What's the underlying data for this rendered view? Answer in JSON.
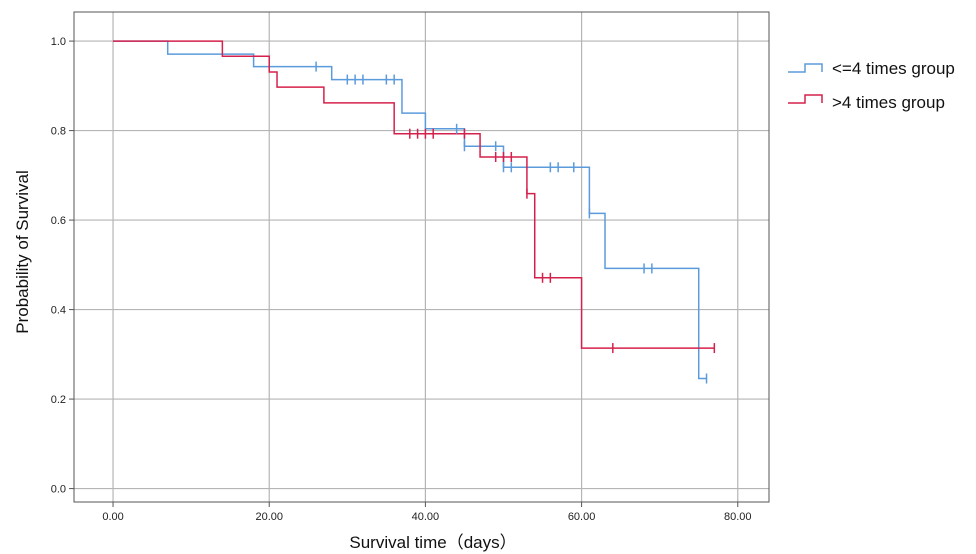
{
  "chart_data": {
    "type": "line",
    "title": "",
    "xlabel": "Survival time（days）",
    "ylabel": "Probability of Survival",
    "xlim": [
      -5,
      84
    ],
    "ylim": [
      -0.03,
      1.065
    ],
    "x_ticks": [
      0,
      20,
      40,
      60,
      80
    ],
    "x_tick_labels": [
      "0.00",
      "20.00",
      "40.00",
      "60.00",
      "80.00"
    ],
    "y_ticks": [
      0,
      0.2,
      0.4,
      0.6,
      0.8,
      1.0
    ],
    "y_tick_labels": [
      "0.0",
      "0.2",
      "0.4",
      "0.6",
      "0.8",
      "1.0"
    ],
    "grid": true,
    "legend_position": "right",
    "series": [
      {
        "name": "<=4 times group",
        "color": "#5b9bdc",
        "step_times": [
          0,
          7,
          18,
          28,
          37,
          40,
          45,
          50,
          61,
          63,
          75,
          76
        ],
        "survival": [
          1.0,
          0.971,
          0.943,
          0.914,
          0.839,
          0.804,
          0.765,
          0.718,
          0.615,
          0.492,
          0.246,
          0.246
        ],
        "censored": [
          {
            "x": 26,
            "y": 0.943
          },
          {
            "x": 30,
            "y": 0.914
          },
          {
            "x": 31,
            "y": 0.914
          },
          {
            "x": 32,
            "y": 0.914
          },
          {
            "x": 35,
            "y": 0.914
          },
          {
            "x": 36,
            "y": 0.914
          },
          {
            "x": 44,
            "y": 0.804
          },
          {
            "x": 45,
            "y": 0.765
          },
          {
            "x": 49,
            "y": 0.765
          },
          {
            "x": 50,
            "y": 0.718
          },
          {
            "x": 51,
            "y": 0.718
          },
          {
            "x": 56,
            "y": 0.718
          },
          {
            "x": 57,
            "y": 0.718
          },
          {
            "x": 59,
            "y": 0.718
          },
          {
            "x": 61,
            "y": 0.615
          },
          {
            "x": 68,
            "y": 0.492
          },
          {
            "x": 69,
            "y": 0.492
          },
          {
            "x": 76,
            "y": 0.246
          }
        ]
      },
      {
        "name": ">4 times group",
        "color": "#d6204c",
        "step_times": [
          0,
          14,
          20,
          21,
          27,
          36,
          47,
          53,
          54,
          60,
          77
        ],
        "survival": [
          1.0,
          0.966,
          0.931,
          0.897,
          0.862,
          0.793,
          0.741,
          0.659,
          0.471,
          0.314,
          0.314
        ],
        "censored": [
          {
            "x": 38,
            "y": 0.793
          },
          {
            "x": 39,
            "y": 0.793
          },
          {
            "x": 40,
            "y": 0.793
          },
          {
            "x": 41,
            "y": 0.793
          },
          {
            "x": 45,
            "y": 0.793
          },
          {
            "x": 49,
            "y": 0.741
          },
          {
            "x": 50,
            "y": 0.741
          },
          {
            "x": 51,
            "y": 0.741
          },
          {
            "x": 53,
            "y": 0.659
          },
          {
            "x": 55,
            "y": 0.471
          },
          {
            "x": 56,
            "y": 0.471
          },
          {
            "x": 64,
            "y": 0.314
          },
          {
            "x": 77,
            "y": 0.314
          }
        ]
      }
    ]
  }
}
